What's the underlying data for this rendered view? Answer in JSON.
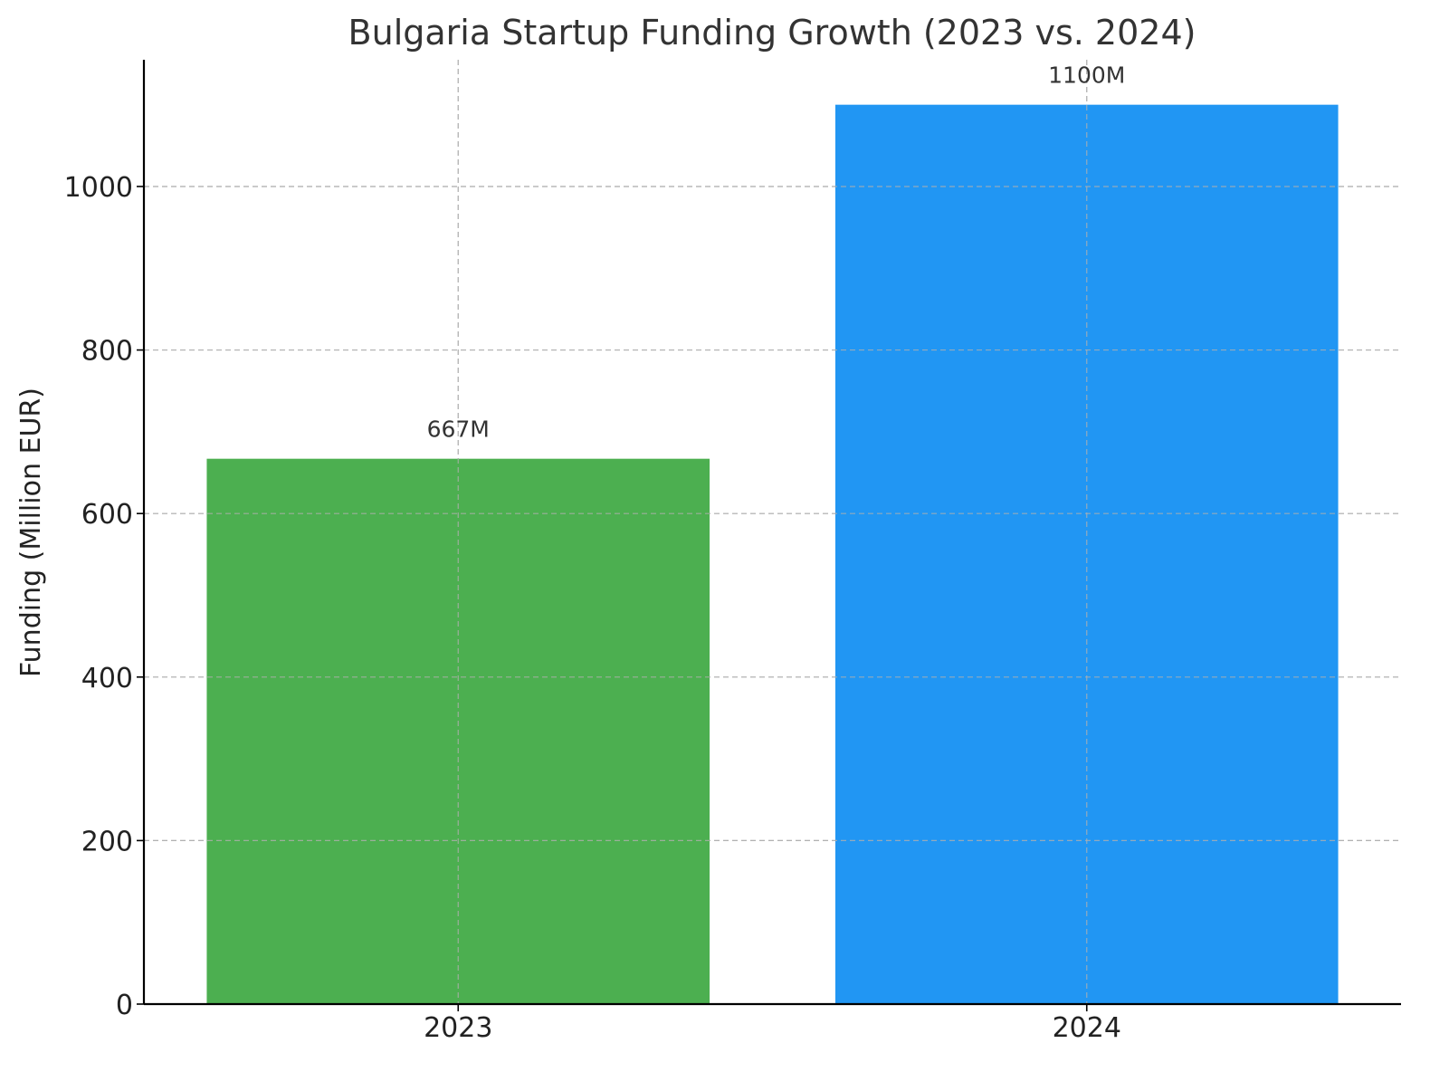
{
  "chart_data": {
    "type": "bar",
    "title": "Bulgaria Startup Funding Growth (2023 vs. 2024)",
    "xlabel": "",
    "ylabel": "Funding (Million EUR)",
    "categories": [
      "2023",
      "2024"
    ],
    "values": [
      667,
      1100
    ],
    "data_labels": [
      "667M",
      "1100M"
    ],
    "colors": [
      "#4caf50",
      "#2196f3"
    ],
    "ylim": [
      0,
      1155
    ],
    "yticks": [
      0,
      200,
      400,
      600,
      800,
      1000
    ],
    "grid": true,
    "grid_style": "dashed",
    "legend": "none"
  }
}
